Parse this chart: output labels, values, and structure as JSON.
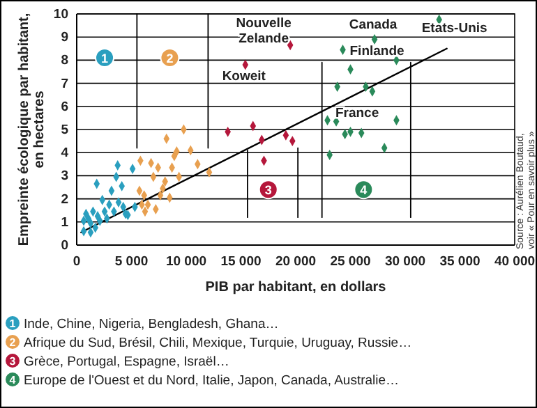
{
  "chart_data": {
    "type": "scatter",
    "xlabel": "PIB par habitant, en dollars",
    "ylabel": "Empreinte écologique par habitant,\nen hectares",
    "xlim": [
      0,
      40000
    ],
    "ylim": [
      0,
      10
    ],
    "xticks": [
      0,
      {
        "value": 5000,
        "label": "5 000"
      },
      {
        "value": 10000,
        "label": "10 000"
      },
      {
        "value": 15000,
        "label": "15 000"
      },
      {
        "value": 20000,
        "label": "20 000"
      },
      {
        "value": 25000,
        "label": "25 000"
      },
      {
        "value": 30000,
        "label": "30 000"
      },
      {
        "value": 35000,
        "label": "35 000"
      },
      {
        "value": 40000,
        "label": "40 000"
      }
    ],
    "yticks": [
      0,
      1,
      2,
      3,
      4,
      5,
      6,
      7,
      8,
      9,
      10
    ],
    "grid": "y",
    "legend": "bottom",
    "series": [
      {
        "name": "Inde, Chine, Nigeria, Bengladesh, Ghana…",
        "color": "#2a9fbf",
        "marker": "diamond",
        "x": [
          640,
          1060,
          850,
          1270,
          1490,
          1700,
          1910,
          1830,
          2340,
          2120,
          2550,
          2760,
          2970,
          3180,
          3400,
          3610,
          3820,
          3740,
          4120,
          4250,
          4460,
          4670,
          5100,
          5310,
          640,
          1270
        ],
        "values": [
          0.6,
          1.15,
          1.35,
          0.95,
          1.45,
          0.75,
          1.25,
          2.65,
          1.95,
          1.05,
          1.45,
          1.15,
          1.75,
          2.35,
          1.45,
          2.95,
          1.85,
          3.45,
          2.55,
          1.65,
          1.35,
          1.3,
          3.3,
          1.65,
          1.05,
          0.55
        ]
      },
      {
        "name": "Afrique du Sud, Brésil, Chili, Mexique, Turquie, Uruguay, Russie…",
        "color": "#e8a050",
        "marker": "diamond",
        "x": [
          5730,
          5820,
          5950,
          6160,
          6240,
          6500,
          6790,
          7000,
          7220,
          7430,
          7640,
          7860,
          8070,
          8200,
          8490,
          8700,
          8910,
          9130,
          9340,
          9770,
          10400,
          11040,
          12100
        ],
        "values": [
          2.35,
          3.65,
          1.75,
          2.15,
          1.45,
          1.75,
          3.55,
          2.95,
          1.55,
          3.35,
          2.15,
          2.45,
          2.75,
          4.6,
          2.05,
          3.35,
          3.85,
          4.05,
          2.95,
          5.0,
          4.1,
          3.5,
          3.15
        ]
      },
      {
        "name": "Grèce, Portugal, Espagne, Israël…",
        "color": "#b5173b",
        "marker": "diamond",
        "x": [
          13800,
          15400,
          16100,
          16900,
          17100,
          19100,
          19700,
          19500
        ],
        "values": [
          4.9,
          7.8,
          5.15,
          4.55,
          3.65,
          4.75,
          4.5,
          8.65
        ]
      },
      {
        "name": "Europe de l'Ouest et du Nord, Italie, Japon, Canada, Australie…",
        "color": "#2a8a5a",
        "marker": "diamond",
        "x": [
          33100,
          27200,
          24300,
          29200,
          25000,
          23800,
          26400,
          27000,
          22900,
          23700,
          29200,
          24500,
          25000,
          26000,
          28100,
          23100
        ],
        "values": [
          9.75,
          8.9,
          8.45,
          8.0,
          7.6,
          6.85,
          6.85,
          6.65,
          5.4,
          5.35,
          5.4,
          4.8,
          4.9,
          4.85,
          4.2,
          3.9
        ]
      },
      {
        "type": "line",
        "color": "#000000",
        "x": [
          400,
          33800
        ],
        "values": [
          0.55,
          8.5
        ]
      },
      {
        "type": "line",
        "color": "#000000",
        "x": [
          5500,
          5500
        ],
        "values": [
          4.2,
          10
        ]
      },
      {
        "type": "line",
        "color": "#000000",
        "x": [
          12000,
          12000
        ],
        "values": [
          4.2,
          10
        ]
      },
      {
        "type": "line",
        "color": "#000000",
        "x": [
          15600,
          15600
        ],
        "values": [
          1.2,
          4.1
        ]
      },
      {
        "type": "line",
        "color": "#000000",
        "x": [
          20200,
          20200
        ],
        "values": [
          1.2,
          4.2
        ]
      },
      {
        "type": "line",
        "color": "#000000",
        "x": [
          22400,
          22400
        ],
        "values": [
          1.2,
          7.9
        ]
      },
      {
        "type": "line",
        "color": "#000000",
        "x": [
          30500,
          30500
        ],
        "values": [
          1.2,
          7.9
        ]
      }
    ],
    "annotations": [
      {
        "text": "1",
        "x": 2550,
        "y": 8.1
      },
      {
        "text": "2",
        "x": 8500,
        "y": 8.1
      },
      {
        "text": "3",
        "x": 17500,
        "y": 2.4
      },
      {
        "text": "4",
        "x": 26200,
        "y": 2.4
      },
      {
        "text": "Nouvelle\nZelande",
        "x": 19500,
        "y": 8.65
      },
      {
        "text": "Koweit",
        "x": 15400,
        "y": 7.8
      },
      {
        "text": "Canada",
        "x": 27200,
        "y": 8.9
      },
      {
        "text": "Etats-Unis",
        "x": 33100,
        "y": 9.75
      },
      {
        "text": "Finlande",
        "x": 24300,
        "y": 8.45
      },
      {
        "text": "France",
        "x": 23700,
        "y": 5.35
      },
      "Source : Aurélien Boutaud,\nvoir « Pour en savoir plus »"
    ]
  }
}
